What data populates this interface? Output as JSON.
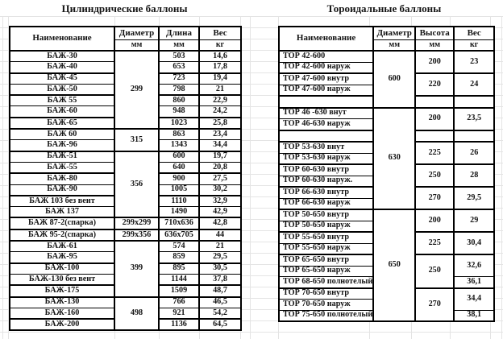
{
  "colors": {
    "border": "#000000",
    "gridline": "#e4e4e4",
    "text": "#141414",
    "background": "#ffffff"
  },
  "left_table": {
    "title": "Цилиндрические баллоны",
    "headers": {
      "name": "Наименование",
      "col2": "Диаметр",
      "col2_unit": "мм",
      "col3": "Длина",
      "col3_unit": "мм",
      "col4": "Вес",
      "col4_unit": "кг"
    },
    "groups": [
      {
        "diameter": "299",
        "rows": [
          {
            "name": "БАЖ-30",
            "length": "503",
            "weight": "14,6"
          },
          {
            "name": "БАЖ-40",
            "length": "653",
            "weight": "17,8"
          },
          {
            "name": "БАЖ-45",
            "length": "723",
            "weight": "19,4"
          },
          {
            "name": "БАЖ-50",
            "length": "798",
            "weight": "21"
          },
          {
            "name": "БАЖ 55",
            "length": "860",
            "weight": "22,9"
          },
          {
            "name": "БАЖ-60",
            "length": "948",
            "weight": "24,2"
          },
          {
            "name": "БАЖ-65",
            "length": "1023",
            "weight": "25,8"
          }
        ]
      },
      {
        "diameter": "315",
        "rows": [
          {
            "name": "БАЖ 60",
            "length": "863",
            "weight": "23,4"
          },
          {
            "name": "БАЖ-96",
            "length": "1343",
            "weight": "34,4"
          }
        ]
      },
      {
        "diameter": "356",
        "rows": [
          {
            "name": "БАЖ-51",
            "length": "600",
            "weight": "19,7"
          },
          {
            "name": "БАЖ-55",
            "length": "640",
            "weight": "20,8"
          },
          {
            "name": "БАЖ-80",
            "length": "900",
            "weight": "27,5"
          },
          {
            "name": "БАЖ-90",
            "length": "1005",
            "weight": "30,2"
          },
          {
            "name": "БАЖ 103 без вент",
            "length": "1110",
            "weight": "32,9"
          },
          {
            "name": "БАЖ 137",
            "length": "1490",
            "weight": "42,9"
          }
        ]
      },
      {
        "diameter": "299x299",
        "rows": [
          {
            "name": "БАЖ 87-2(спарка)",
            "length": "710x636",
            "weight": "42,8"
          }
        ]
      },
      {
        "diameter": "299x356",
        "rows": [
          {
            "name": "БАЖ 95-2(спарка)",
            "length": "636x705",
            "weight": "44"
          }
        ]
      },
      {
        "diameter": "399",
        "rows": [
          {
            "name": "БАЖ-61",
            "length": "574",
            "weight": "21"
          },
          {
            "name": "БАЖ-95",
            "length": "859",
            "weight": "29,5"
          },
          {
            "name": "БАЖ-100",
            "length": "895",
            "weight": "30,5"
          },
          {
            "name": "БАЖ-130 без вент",
            "length": "1144",
            "weight": "37,8"
          },
          {
            "name": "БАЖ-175",
            "length": "1509",
            "weight": "48,7"
          }
        ]
      },
      {
        "diameter": "498",
        "rows": [
          {
            "name": "БАЖ-130",
            "length": "766",
            "weight": "46,5"
          },
          {
            "name": "БАЖ-160",
            "length": "921",
            "weight": "54,2"
          },
          {
            "name": "БАЖ-200",
            "length": "1136",
            "weight": "64,5"
          }
        ]
      }
    ]
  },
  "right_table": {
    "title": "Тороидальные баллоны",
    "headers": {
      "name": "Наименование",
      "col2": "Диаметр",
      "col2_unit": "мм",
      "col3": "Высота",
      "col3_unit": "мм",
      "col4": "Вес",
      "col4_unit": "кг"
    },
    "groups": [
      {
        "diameter": "600",
        "subs": [
          {
            "height": "200",
            "weight": "23",
            "names": [
              "ТОР 42-600",
              "ТОР 42-600 наруж"
            ]
          },
          {
            "height": "220",
            "weight": "24",
            "names": [
              "ТОР 47-600 внутр",
              "ТОР 47-600 наруж"
            ]
          },
          {
            "spacer": true
          }
        ]
      },
      {
        "diameter": "630",
        "subs": [
          {
            "height": "200",
            "weight": "23,5",
            "names": [
              "ТОР 46 -630 внут",
              "ТОР 46-630 наруж"
            ]
          },
          {
            "spacer": true
          },
          {
            "height": "225",
            "weight": "26",
            "names": [
              "ТОР 53-630 внут",
              "ТОР 53-630 наруж"
            ]
          },
          {
            "height": "250",
            "weight": "28",
            "names": [
              "ТОР 60-630 внутр",
              "ТОР 60-630 наруж."
            ]
          },
          {
            "height": "270",
            "weight": "29,5",
            "names": [
              "ТОР 66-630 внутр",
              "ТОР 66-630 наруж"
            ]
          }
        ]
      },
      {
        "diameter": "650",
        "subs": [
          {
            "height": "200",
            "weight": "29",
            "names": [
              "ТОР 50-650 внутр",
              "ТОР 50-650 наруж"
            ]
          },
          {
            "height": "225",
            "weight": "30,4",
            "names": [
              "ТОР 55-650 внутр",
              "ТОР 55-650 наруж"
            ]
          },
          {
            "height": "250",
            "weight_groups": [
              {
                "weight": "32,6",
                "names": [
                  "ТОР 65-650 внутр",
                  "ТОР 65-650 наруж"
                ]
              },
              {
                "weight": "36,1",
                "names": [
                  "ТОР 68-650 полнотелый"
                ]
              }
            ]
          },
          {
            "height": "270",
            "weight_groups": [
              {
                "weight": "34,4",
                "names": [
                  "ТОР 70-650 внутр",
                  "ТОР 70-650 наруж"
                ]
              },
              {
                "weight": "38,1",
                "names": [
                  "ТОР 75-650 полнотелый"
                ]
              }
            ]
          }
        ]
      }
    ]
  }
}
